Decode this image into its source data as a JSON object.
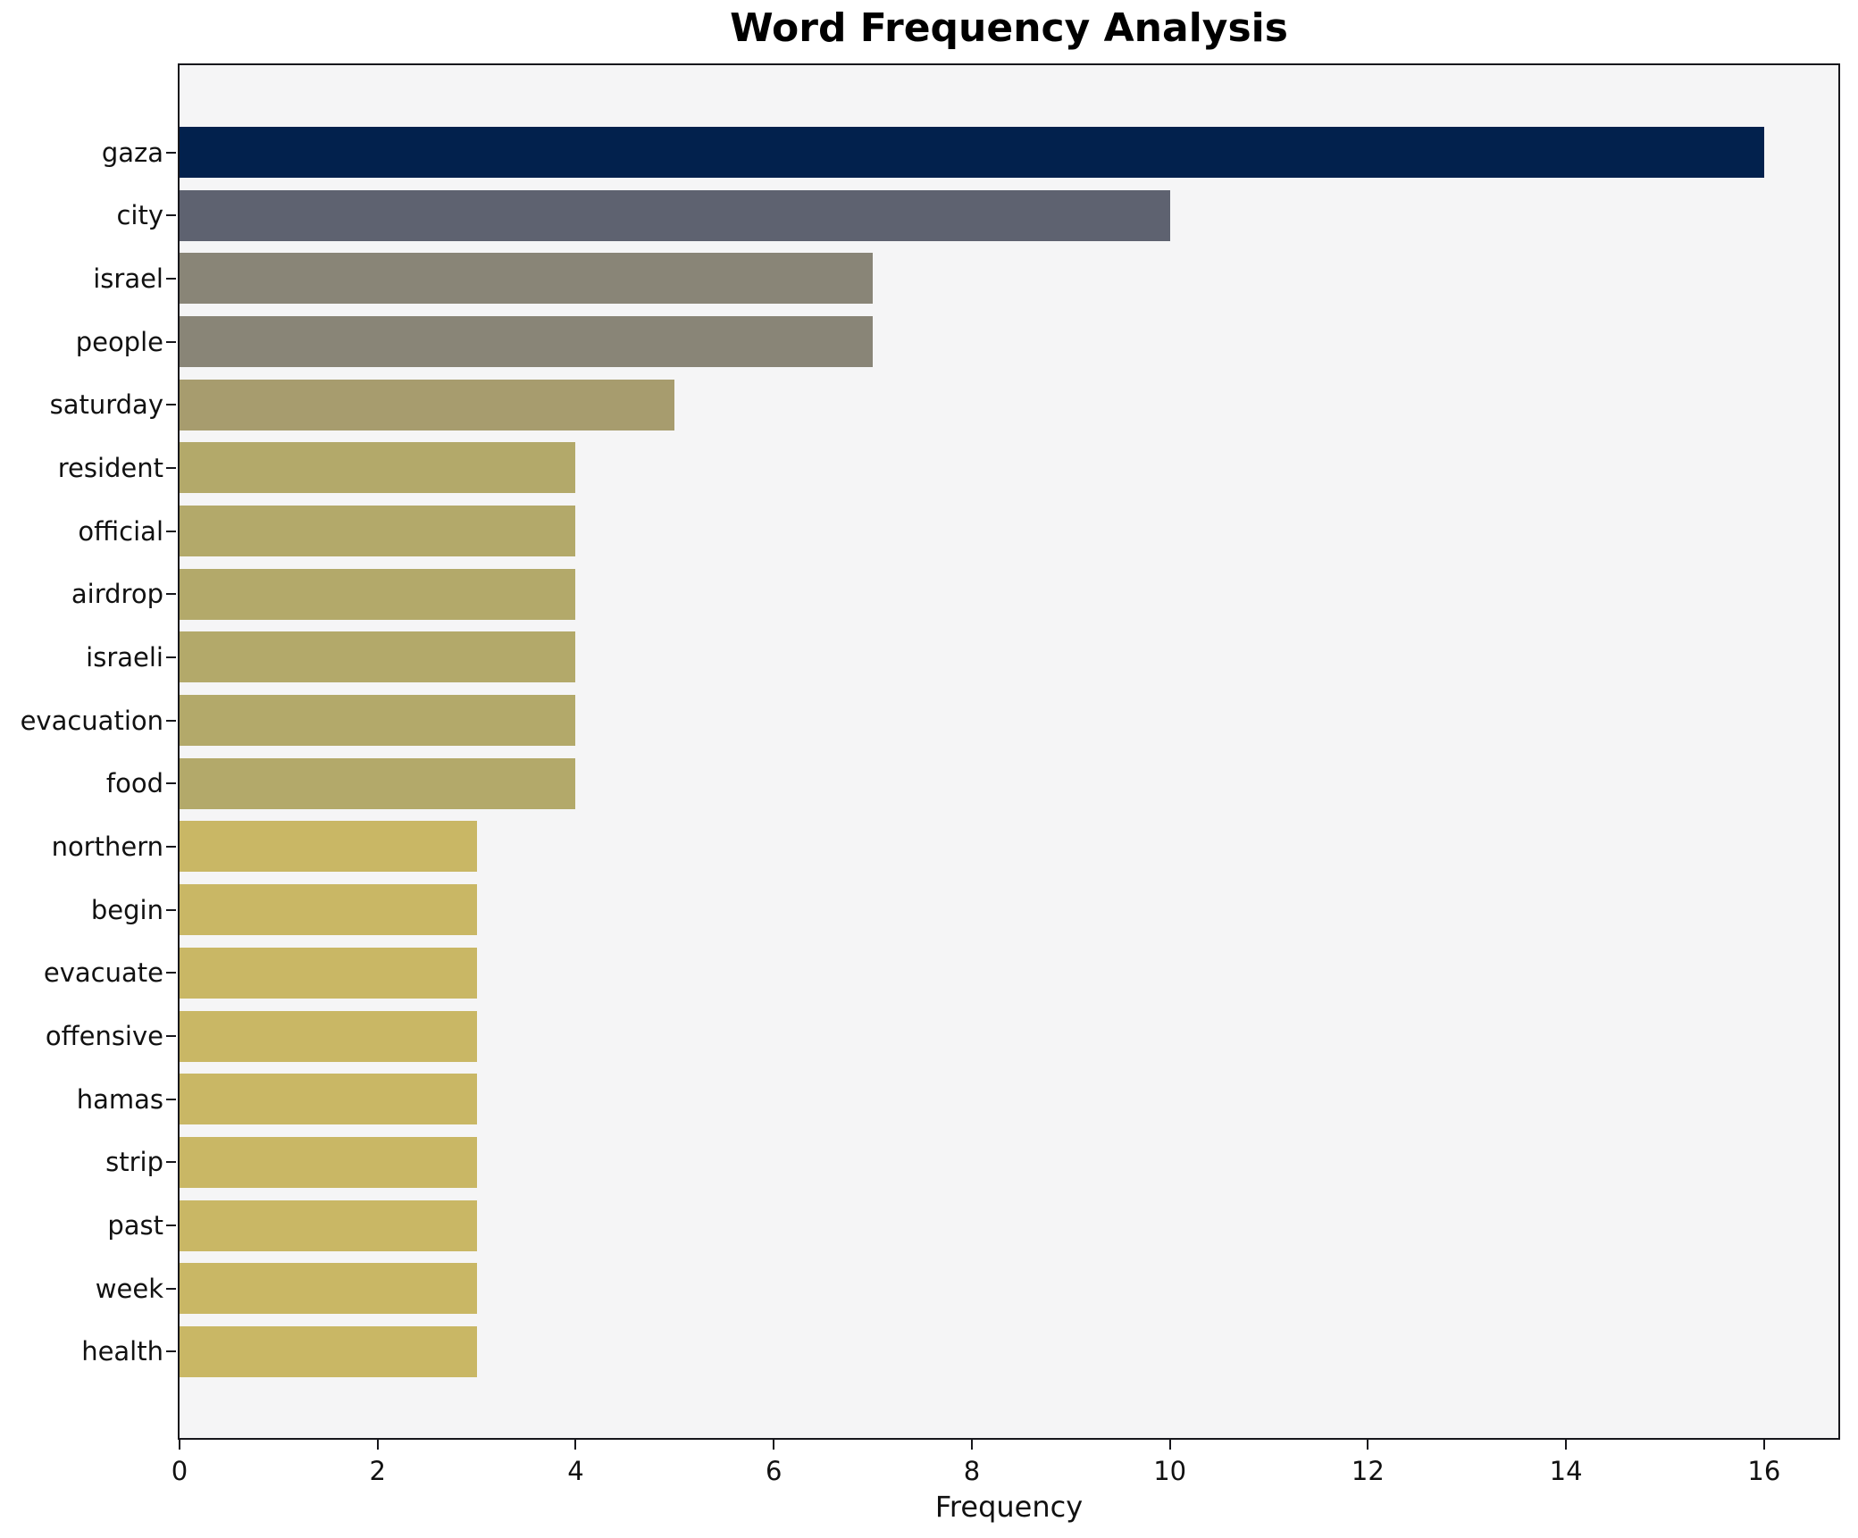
{
  "chart_data": {
    "type": "bar",
    "orientation": "horizontal",
    "title": "Word Frequency Analysis",
    "xlabel": "Frequency",
    "ylabel": "",
    "categories": [
      "gaza",
      "city",
      "israel",
      "people",
      "saturday",
      "resident",
      "official",
      "airdrop",
      "israeli",
      "evacuation",
      "food",
      "northern",
      "begin",
      "evacuate",
      "offensive",
      "hamas",
      "strip",
      "past",
      "week",
      "health"
    ],
    "values": [
      16,
      10,
      7,
      7,
      5,
      4,
      4,
      4,
      4,
      4,
      4,
      3,
      3,
      3,
      3,
      3,
      3,
      3,
      3,
      3
    ],
    "xticks": [
      0,
      2,
      4,
      6,
      8,
      10,
      12,
      14,
      16
    ],
    "xlim": [
      0,
      16.75
    ],
    "grid": false,
    "legend": "none",
    "bar_colors": [
      "#02214d",
      "#5e6270",
      "#898577",
      "#898577",
      "#a79c6e",
      "#b3a96a",
      "#b3a96a",
      "#b3a96a",
      "#b3a96a",
      "#b3a96a",
      "#b3a96a",
      "#c9b765",
      "#c9b765",
      "#c9b765",
      "#c9b765",
      "#c9b765",
      "#c9b765",
      "#c9b765",
      "#c9b765",
      "#c9b765"
    ],
    "plot_background": "#f5f5f6",
    "figure_background": "#ffffff",
    "axis_color": "#17171c",
    "text_color": "#111111"
  }
}
